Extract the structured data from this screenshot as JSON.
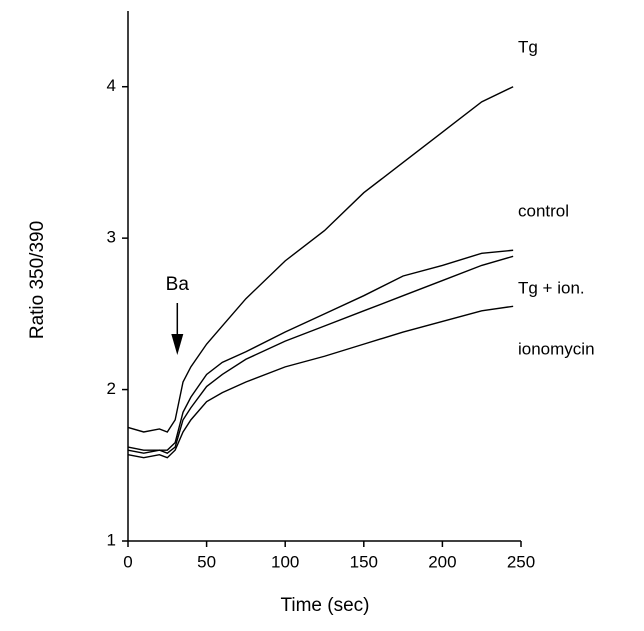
{
  "chart_data": {
    "type": "line",
    "x_label": "Time (sec)",
    "y_label": "Ratio 350/390",
    "annotation": "Ba",
    "x": [
      0,
      10,
      20,
      25,
      30,
      35,
      40,
      50,
      60,
      75,
      100,
      125,
      150,
      175,
      200,
      225,
      245
    ],
    "series": [
      {
        "name": "Tg",
        "color": "#000000",
        "values": [
          1.75,
          1.72,
          1.74,
          1.72,
          1.8,
          2.05,
          2.15,
          2.3,
          2.42,
          2.6,
          2.85,
          3.05,
          3.3,
          3.5,
          3.7,
          3.9,
          4.0
        ]
      },
      {
        "name": "control",
        "color": "#000000",
        "values": [
          1.62,
          1.6,
          1.6,
          1.6,
          1.65,
          1.85,
          1.95,
          2.1,
          2.18,
          2.25,
          2.38,
          2.5,
          2.62,
          2.75,
          2.82,
          2.9,
          2.92
        ]
      },
      {
        "name": "Tg + ion.",
        "color": "#000000",
        "values": [
          1.6,
          1.58,
          1.6,
          1.58,
          1.62,
          1.8,
          1.88,
          2.02,
          2.1,
          2.2,
          2.32,
          2.42,
          2.52,
          2.62,
          2.72,
          2.82,
          2.88
        ]
      },
      {
        "name": "ionomycin",
        "color": "#000000",
        "values": [
          1.57,
          1.55,
          1.57,
          1.55,
          1.6,
          1.72,
          1.8,
          1.92,
          1.98,
          2.05,
          2.15,
          2.22,
          2.3,
          2.38,
          2.45,
          2.52,
          2.55
        ]
      }
    ],
    "xlim": [
      0,
      250
    ],
    "xticks": [
      0,
      50,
      100,
      150,
      200,
      250
    ],
    "ylim": [
      1,
      4.5
    ],
    "yticks": [
      1,
      2,
      3,
      4
    ],
    "grid": false
  }
}
